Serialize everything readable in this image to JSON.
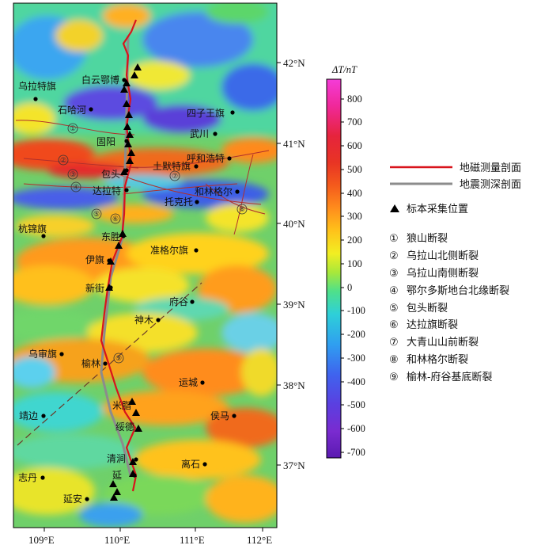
{
  "map": {
    "axes": {
      "lon_ticks": [
        "109°E",
        "110°E",
        "111°E",
        "112°E"
      ],
      "lat_ticks": [
        "42°N",
        "41°N",
        "40°N",
        "39°N",
        "38°N",
        "37°N"
      ]
    },
    "cities": [
      {
        "name": "乌拉特旗"
      },
      {
        "name": "白云鄂博"
      },
      {
        "name": "石哈河"
      },
      {
        "name": "四子王旗"
      },
      {
        "name": "武川"
      },
      {
        "name": "固阳"
      },
      {
        "name": "呼和浩特"
      },
      {
        "name": "包头"
      },
      {
        "name": "土默特旗"
      },
      {
        "name": "达拉特"
      },
      {
        "name": "和林格尔"
      },
      {
        "name": "托克托"
      },
      {
        "name": "杭锦旗"
      },
      {
        "name": "东胜"
      },
      {
        "name": "准格尔旗"
      },
      {
        "name": "伊旗"
      },
      {
        "name": "新街"
      },
      {
        "name": "府谷"
      },
      {
        "name": "神木"
      },
      {
        "name": "乌审旗"
      },
      {
        "name": "榆林"
      },
      {
        "name": "运城"
      },
      {
        "name": "米脂"
      },
      {
        "name": "靖边"
      },
      {
        "name": "侯马"
      },
      {
        "name": "绥德"
      },
      {
        "name": "清涧"
      },
      {
        "name": "离石"
      },
      {
        "name": "志丹"
      },
      {
        "name": "延"
      },
      {
        "name": "延安"
      }
    ],
    "fault_markers": [
      "①",
      "②",
      "③",
      "④",
      "⑤",
      "⑥",
      "⑦",
      "⑧",
      "⑨"
    ]
  },
  "colorbar": {
    "title": "ΔT/nT",
    "ticks": [
      "800",
      "700",
      "600",
      "500",
      "400",
      "300",
      "200",
      "100",
      "0",
      "-100",
      "-200",
      "-300",
      "-400",
      "-500",
      "-600",
      "-700"
    ],
    "range": [
      -750,
      870
    ],
    "colors": [
      "#5a1ab0",
      "#7a2bd0",
      "#5b3fe0",
      "#3f63ee",
      "#2f9ff0",
      "#2ed0d8",
      "#4fe08a",
      "#a8e83a",
      "#f2ee22",
      "#ffc21a",
      "#ff8c1c",
      "#f45a1c",
      "#e83424",
      "#e6243c",
      "#f0289a",
      "#f43cd8"
    ]
  },
  "legend": {
    "magnetic_profile": "地磁测量剖面",
    "seismic_profile": "地震测深剖面",
    "sample_location": "标本采集位置",
    "faults": [
      {
        "num": "①",
        "name": "狼山断裂"
      },
      {
        "num": "②",
        "name": "乌拉山北侧断裂"
      },
      {
        "num": "③",
        "name": "乌拉山南侧断裂"
      },
      {
        "num": "④",
        "name": "鄂尔多斯地台北缘断裂"
      },
      {
        "num": "⑤",
        "name": "包头断裂"
      },
      {
        "num": "⑥",
        "name": "达拉旗断裂"
      },
      {
        "num": "⑦",
        "name": "大青山山前断裂"
      },
      {
        "num": "⑧",
        "name": "和林格尔断裂"
      },
      {
        "num": "⑨",
        "name": "榆林-府谷基底断裂"
      }
    ],
    "colors": {
      "magnetic": "#d8141c",
      "seismic": "#8c8c8c"
    }
  }
}
